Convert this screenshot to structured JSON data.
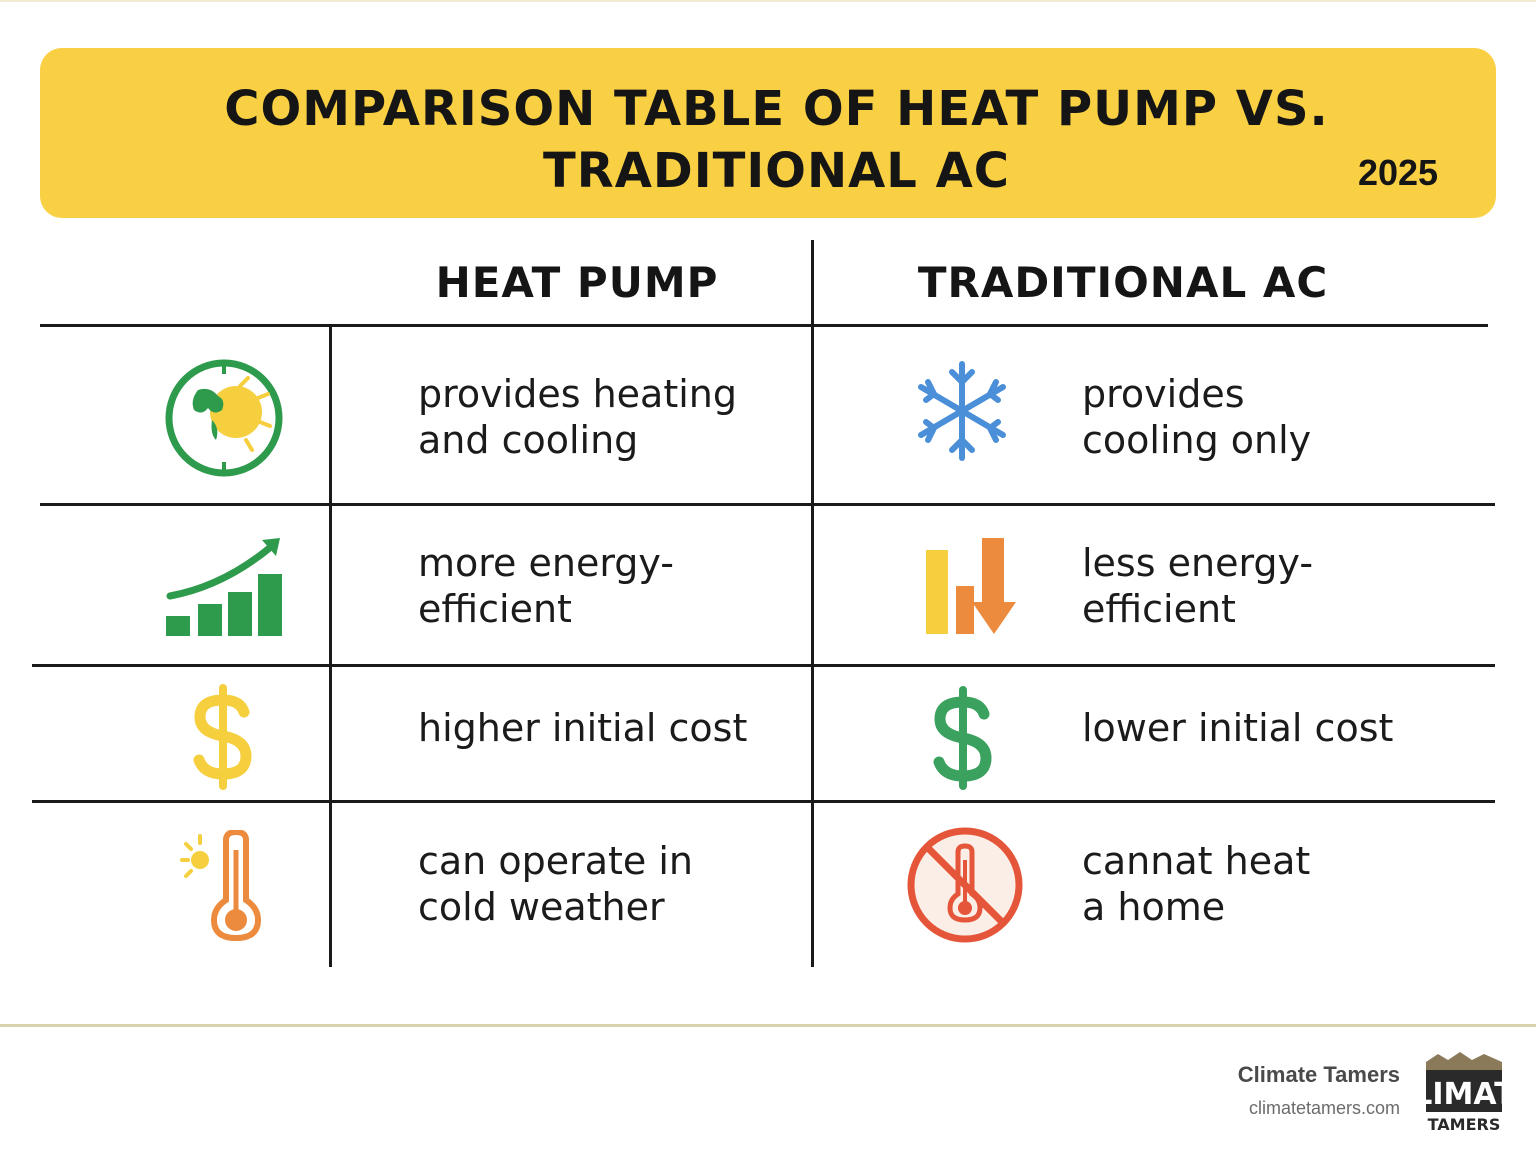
{
  "header": {
    "title": "COMPARISON TABLE OF HEAT PUMP VS.\nTRADITIONAL AC",
    "year": "2025",
    "background_color": "#f9d043"
  },
  "columns": {
    "heat_pump": "HEAT PUMP",
    "traditional_ac": "TRADITIONAL AC"
  },
  "rows": [
    {
      "heat_pump": {
        "icon": "sun-globe-icon",
        "text": "provides heating\nand cooling"
      },
      "traditional_ac": {
        "icon": "snowflake-icon",
        "text": "provides\ncooling only"
      }
    },
    {
      "heat_pump": {
        "icon": "rising-bars-icon",
        "text": "more energy-\nefficient"
      },
      "traditional_ac": {
        "icon": "falling-bars-icon",
        "text": "less energy-\nefficient"
      }
    },
    {
      "heat_pump": {
        "icon": "yellow-dollar-icon",
        "text": "higher initial cost"
      },
      "traditional_ac": {
        "icon": "green-dollar-icon",
        "text": "lower initial cost"
      }
    },
    {
      "heat_pump": {
        "icon": "thermometer-sun-icon",
        "text": "can operate in\ncold weather"
      },
      "traditional_ac": {
        "icon": "no-heat-thermometer-icon",
        "text": "cannat heat\na home"
      }
    }
  ],
  "colors": {
    "green": "#2e9a4c",
    "yellow": "#f6cf3f",
    "blue": "#4a8fd8",
    "orange": "#ec8a3e",
    "red": "#e4553a"
  },
  "footer": {
    "brand_name": "Climate Tamers",
    "brand_url": "climatetamers.com",
    "logo_text_top": "LIMAT",
    "logo_text_bottom": "TAMERS"
  }
}
